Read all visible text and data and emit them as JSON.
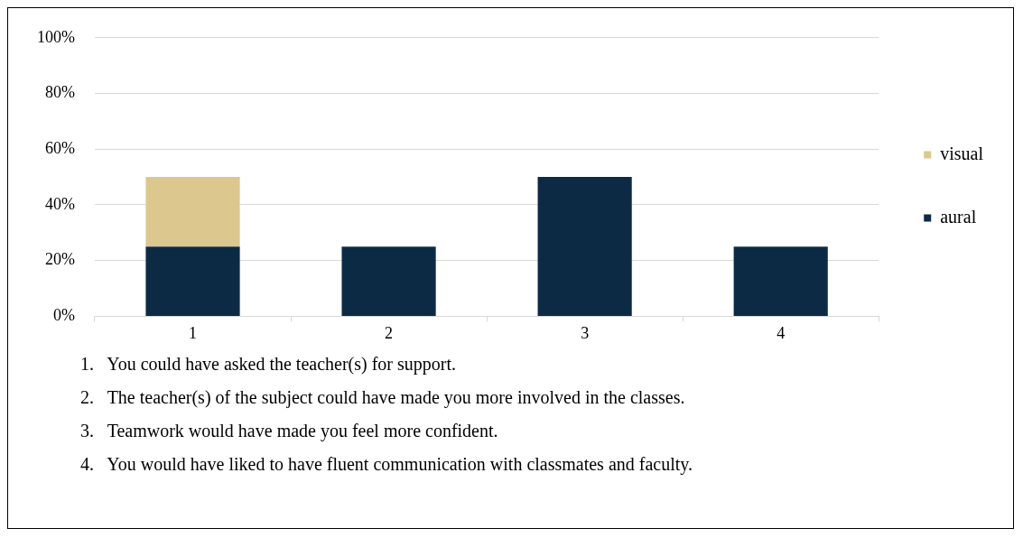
{
  "chart_data": {
    "type": "bar",
    "stacked": true,
    "categories": [
      "1",
      "2",
      "3",
      "4"
    ],
    "series": [
      {
        "name": "aural",
        "color": "#0d2a45",
        "values": [
          25,
          25,
          50,
          25
        ]
      },
      {
        "name": "visual",
        "color": "#dcc78f",
        "values": [
          25,
          0,
          0,
          0
        ]
      }
    ],
    "ylim": [
      0,
      100
    ],
    "yticks": [
      {
        "value": 0,
        "label": "0%"
      },
      {
        "value": 20,
        "label": "20%"
      },
      {
        "value": 40,
        "label": "40%"
      },
      {
        "value": 60,
        "label": "60%"
      },
      {
        "value": 80,
        "label": "80%"
      },
      {
        "value": 100,
        "label": "100%"
      }
    ],
    "grid": "y",
    "legend": "right",
    "annotations": [
      "1.   You could have asked the teacher(s) for support.",
      "2.   The teacher(s) of the subject could have made you more involved in the classes.",
      "3.   Teamwork would have made you feel more confident.",
      "4.   You would have liked to have fluent communication with classmates and faculty."
    ]
  }
}
